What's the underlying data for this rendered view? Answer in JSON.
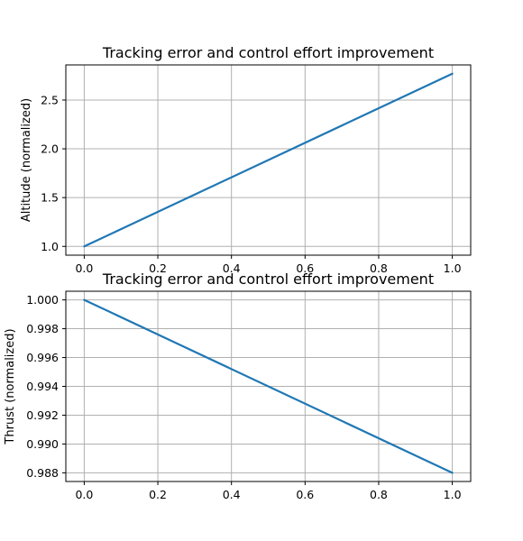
{
  "chart_data": [
    {
      "type": "line",
      "title": "Tracking error and control effort improvement",
      "xlabel": "",
      "ylabel": "Altitude (normalized)",
      "xlim": [
        -0.05,
        1.05
      ],
      "ylim": [
        0.91,
        2.86
      ],
      "xticks": [
        0.0,
        0.2,
        0.4,
        0.6,
        0.8,
        1.0
      ],
      "xtick_labels": [
        "0.0",
        "0.2",
        "0.4",
        "0.6",
        "0.8",
        "1.0"
      ],
      "yticks": [
        1.0,
        1.5,
        2.0,
        2.5
      ],
      "ytick_labels": [
        "1.0",
        "1.5",
        "2.0",
        "2.5"
      ],
      "grid": true,
      "series": [
        {
          "x": [
            0.0,
            1.0
          ],
          "y": [
            1.0,
            2.77
          ],
          "color": "#1f77b4"
        }
      ]
    },
    {
      "type": "line",
      "title": "Tracking error and control effort improvement",
      "xlabel": "",
      "ylabel": "Thrust (normalized)",
      "xlim": [
        -0.05,
        1.05
      ],
      "ylim": [
        0.9874,
        1.0006
      ],
      "xticks": [
        0.0,
        0.2,
        0.4,
        0.6,
        0.8,
        1.0
      ],
      "xtick_labels": [
        "0.0",
        "0.2",
        "0.4",
        "0.6",
        "0.8",
        "1.0"
      ],
      "yticks": [
        0.988,
        0.99,
        0.992,
        0.994,
        0.996,
        0.998,
        1.0
      ],
      "ytick_labels": [
        "0.988",
        "0.990",
        "0.992",
        "0.994",
        "0.996",
        "0.998",
        "1.000"
      ],
      "grid": true,
      "series": [
        {
          "x": [
            0.0,
            1.0
          ],
          "y": [
            1.0,
            0.988
          ],
          "color": "#1f77b4"
        }
      ]
    }
  ]
}
